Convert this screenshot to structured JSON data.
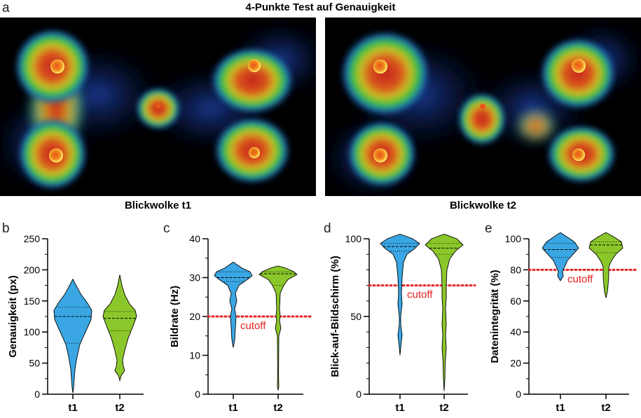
{
  "figure": {
    "title": "4-Punkte Test auf Genauigkeit",
    "panel_letters": [
      "a",
      "b",
      "c",
      "d",
      "e"
    ],
    "colors": {
      "t1": "#3aa6e3",
      "t2": "#8bc72a",
      "cutoff": "#e8221f"
    }
  },
  "heatmaps": [
    {
      "caption": "Blickwolke t1",
      "type": "heatmap",
      "points": 4
    },
    {
      "caption": "Blickwolke t2",
      "type": "heatmap",
      "points": 4
    }
  ],
  "chart_data": [
    {
      "type": "violin",
      "ylabel": "Genauigkeit (px)",
      "ylim": [
        0,
        250
      ],
      "yticks": [
        "0",
        "50",
        "100",
        "150",
        "200",
        "250"
      ],
      "categories": [
        "t1",
        "t2"
      ],
      "series": [
        {
          "name": "t1",
          "min": 2,
          "max": 185,
          "median": 125,
          "q1": 82,
          "q3": 140
        },
        {
          "name": "t2",
          "min": 22,
          "max": 192,
          "median": 122,
          "q1": 102,
          "q3": 133
        }
      ]
    },
    {
      "type": "violin",
      "ylabel": "Bildrate (Hz)",
      "ylim": [
        0,
        40
      ],
      "yticks": [
        "0",
        "10",
        "20",
        "30",
        "40"
      ],
      "categories": [
        "t1",
        "t2"
      ],
      "cutoff": {
        "value": 20,
        "label": "cutoff"
      },
      "series": [
        {
          "name": "t1",
          "min": 12,
          "max": 34,
          "median": 30,
          "q1": 29,
          "q3": 31.5
        },
        {
          "name": "t2",
          "min": 1,
          "max": 33,
          "median": 31,
          "q1": 28,
          "q3": 31.5
        }
      ]
    },
    {
      "type": "violin",
      "ylabel": "Blick-auf-Bildschirm (%)",
      "ylim": [
        0,
        100
      ],
      "yticks": [
        "0",
        "50",
        "100"
      ],
      "categories": [
        "t1",
        "t2"
      ],
      "cutoff": {
        "value": 70,
        "label": "cutoff"
      },
      "series": [
        {
          "name": "t1",
          "min": 25,
          "max": 103,
          "median": 95,
          "q1": 92,
          "q3": 97
        },
        {
          "name": "t2",
          "min": 2,
          "max": 103,
          "median": 94,
          "q1": 90,
          "q3": 97
        }
      ]
    },
    {
      "type": "violin",
      "ylabel": "Datenintegrität (%)",
      "ylim": [
        0,
        100
      ],
      "yticks": [
        "0",
        "20",
        "40",
        "60",
        "80",
        "100"
      ],
      "categories": [
        "t1",
        "t2"
      ],
      "cutoff": {
        "value": 80,
        "label": "cutoff"
      },
      "series": [
        {
          "name": "t1",
          "min": 73,
          "max": 104,
          "median": 93,
          "q1": 88,
          "q3": 97
        },
        {
          "name": "t2",
          "min": 62,
          "max": 104,
          "median": 96,
          "q1": 91,
          "q3": 98
        }
      ]
    }
  ]
}
